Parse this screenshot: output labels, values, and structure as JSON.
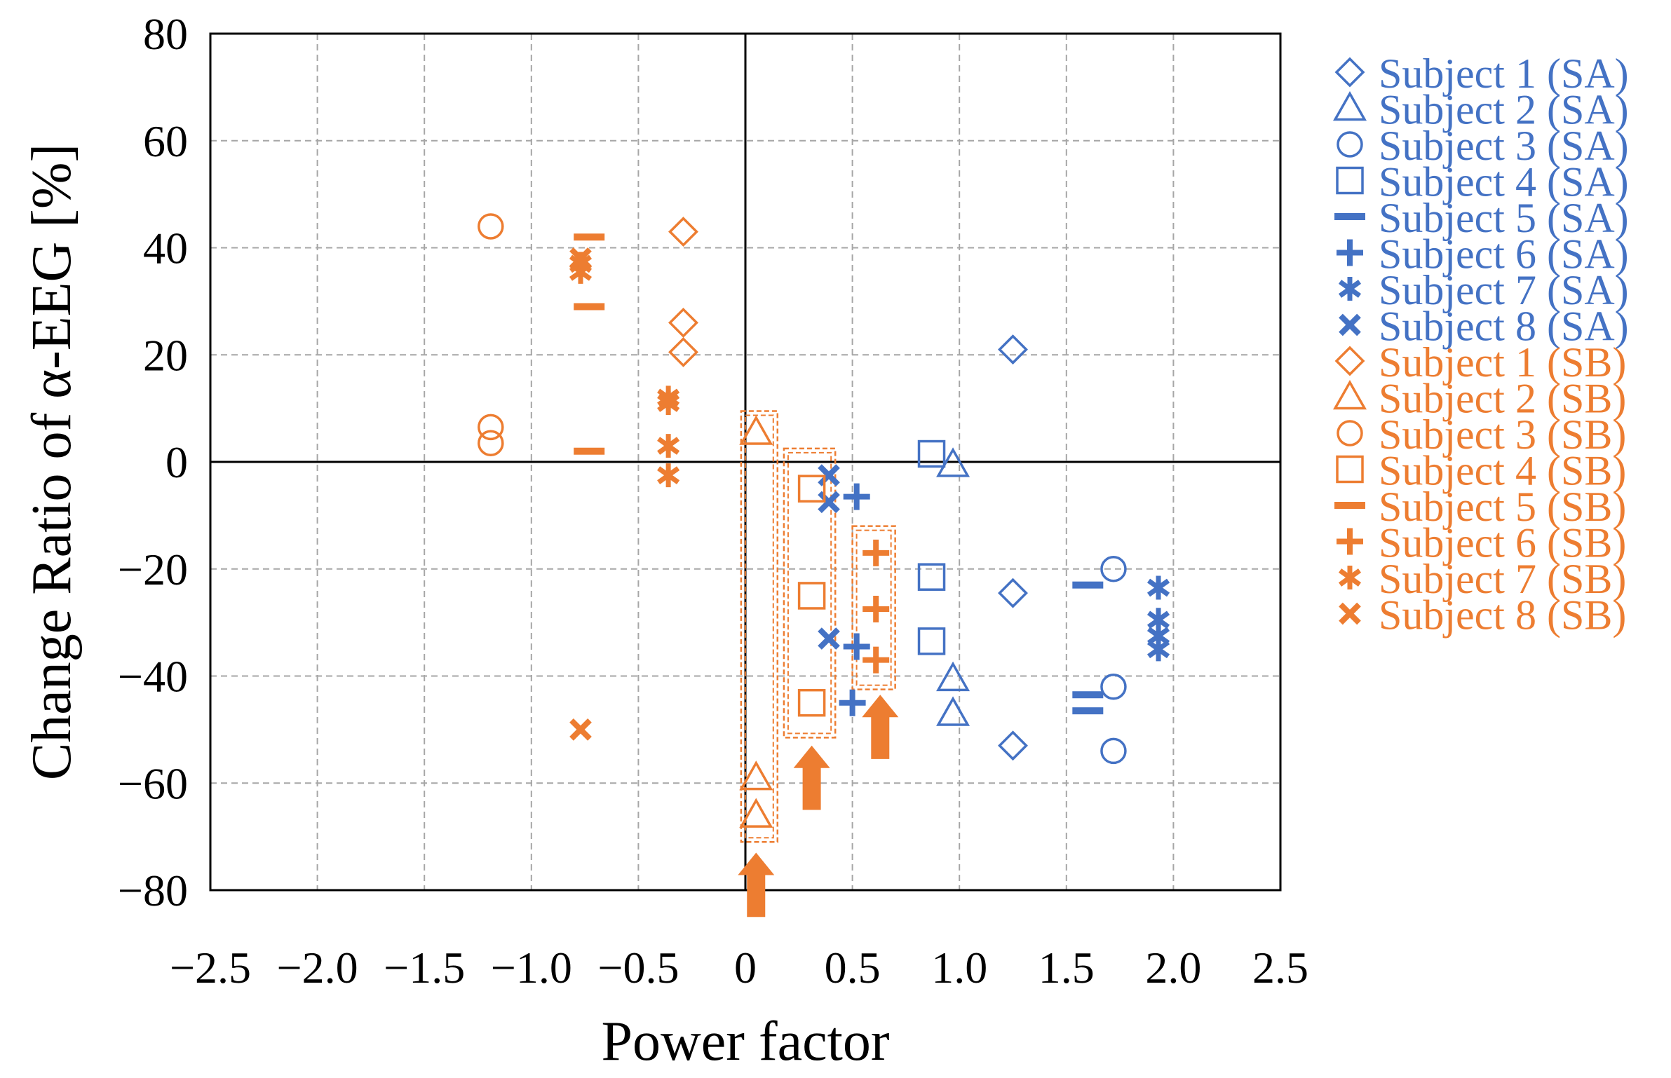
{
  "chart_data": {
    "type": "scatter",
    "title": "",
    "xlabel": "Power factor",
    "ylabel": "Change Ratio of α-EEG [%]",
    "xlim": [
      -2.5,
      2.5
    ],
    "ylim": [
      -80,
      80
    ],
    "xticks": [
      -2.5,
      -2.0,
      -1.5,
      -1.0,
      -0.5,
      0,
      0.5,
      1.0,
      1.5,
      2.0,
      2.5
    ],
    "xtick_labels": [
      "−2.5",
      "−2.0",
      "−1.5",
      "−1.0",
      "−0.5",
      "0",
      "0.5",
      "1.0",
      "1.5",
      "2.0",
      "2.5"
    ],
    "yticks": [
      80,
      60,
      40,
      20,
      0,
      -20,
      -40,
      -60,
      -80
    ],
    "ytick_labels": [
      "80",
      "60",
      "40",
      "20",
      "0",
      "−20",
      "−40",
      "−60",
      "−80"
    ],
    "grid": true,
    "legend_position": "right",
    "colors": {
      "SA": "#4472c4",
      "SB": "#ed7d31",
      "axis": "#000000",
      "grid": "#a6a6a6"
    },
    "series": [
      {
        "name": "Subject 1 (SA)",
        "marker": "diamond",
        "group": "SA",
        "points": [
          [
            1.25,
            21
          ],
          [
            1.25,
            -24.5
          ],
          [
            1.25,
            -53
          ]
        ]
      },
      {
        "name": "Subject 2 (SA)",
        "marker": "triangle",
        "group": "SA",
        "points": [
          [
            0.97,
            -0.5
          ],
          [
            0.97,
            -40.5
          ],
          [
            0.97,
            -47
          ]
        ]
      },
      {
        "name": "Subject 3 (SA)",
        "marker": "circle",
        "group": "SA",
        "points": [
          [
            1.72,
            -20
          ],
          [
            1.72,
            -42
          ],
          [
            1.72,
            -54
          ]
        ]
      },
      {
        "name": "Subject 4 (SA)",
        "marker": "square",
        "group": "SA",
        "points": [
          [
            0.87,
            1.5
          ],
          [
            0.87,
            -21.5
          ],
          [
            0.87,
            -33.5
          ]
        ]
      },
      {
        "name": "Subject 5 (SA)",
        "marker": "dash",
        "group": "SA",
        "points": [
          [
            1.6,
            -23
          ],
          [
            1.6,
            -43.5
          ],
          [
            1.6,
            -46.5
          ]
        ]
      },
      {
        "name": "Subject 6 (SA)",
        "marker": "plus",
        "group": "SA",
        "points": [
          [
            0.52,
            -6.5
          ],
          [
            0.52,
            -34.5
          ],
          [
            0.5,
            -45
          ]
        ]
      },
      {
        "name": "Subject 7 (SA)",
        "marker": "asterisk",
        "group": "SA",
        "points": [
          [
            1.93,
            -23.5
          ],
          [
            1.93,
            -29.5
          ],
          [
            1.93,
            -32.5
          ],
          [
            1.93,
            -35
          ]
        ]
      },
      {
        "name": "Subject 8 (SA)",
        "marker": "cross",
        "group": "SA",
        "points": [
          [
            0.39,
            -2.5
          ],
          [
            0.39,
            -7.5
          ],
          [
            0.39,
            -33
          ]
        ]
      },
      {
        "name": "Subject 1 (SB)",
        "marker": "diamond",
        "group": "SB",
        "points": [
          [
            -0.29,
            43
          ],
          [
            -0.29,
            26
          ],
          [
            -0.29,
            20.5
          ]
        ]
      },
      {
        "name": "Subject 2 (SB)",
        "marker": "triangle",
        "group": "SB",
        "points": [
          [
            0.05,
            5.5
          ],
          [
            0.05,
            -59
          ],
          [
            0.05,
            -66
          ]
        ]
      },
      {
        "name": "Subject 3 (SB)",
        "marker": "circle",
        "group": "SB",
        "points": [
          [
            -1.19,
            44
          ],
          [
            -1.19,
            6.5
          ],
          [
            -1.19,
            3.5
          ]
        ]
      },
      {
        "name": "Subject 4 (SB)",
        "marker": "square",
        "group": "SB",
        "points": [
          [
            0.31,
            -5
          ],
          [
            0.31,
            -25
          ],
          [
            0.31,
            -45
          ]
        ]
      },
      {
        "name": "Subject 5 (SB)",
        "marker": "dash",
        "group": "SB",
        "points": [
          [
            -0.73,
            42
          ],
          [
            -0.73,
            29
          ],
          [
            -0.73,
            2
          ]
        ]
      },
      {
        "name": "Subject 6 (SB)",
        "marker": "plus",
        "group": "SB",
        "points": [
          [
            0.61,
            -17
          ],
          [
            0.61,
            -27.5
          ],
          [
            0.61,
            -37
          ]
        ]
      },
      {
        "name": "Subject 7 (SB)",
        "marker": "asterisk",
        "group": "SB",
        "points": [
          [
            -0.77,
            37
          ],
          [
            -0.77,
            35.5
          ],
          [
            -0.36,
            12
          ],
          [
            -0.36,
            11
          ],
          [
            -0.36,
            3
          ],
          [
            -0.36,
            -2.5
          ]
        ]
      },
      {
        "name": "Subject 8 (SB)",
        "marker": "cross",
        "group": "SB",
        "points": [
          [
            -0.77,
            38
          ],
          [
            -0.77,
            -50
          ]
        ]
      }
    ],
    "annotations": {
      "dashed_boxes": [
        {
          "x": [
            -0.02,
            0.15
          ],
          "y": [
            -71,
            9.5
          ]
        },
        {
          "x": [
            0.18,
            0.42
          ],
          "y": [
            -51.5,
            2.5
          ]
        },
        {
          "x": [
            0.5,
            0.7
          ],
          "y": [
            -42.5,
            -12
          ]
        }
      ],
      "arrows": [
        {
          "x": 0.05,
          "y_from": -85,
          "y_to": -73
        },
        {
          "x": 0.31,
          "y_from": -65,
          "y_to": -53
        },
        {
          "x": 0.63,
          "y_from": -55.5,
          "y_to": -43.5
        }
      ]
    }
  }
}
